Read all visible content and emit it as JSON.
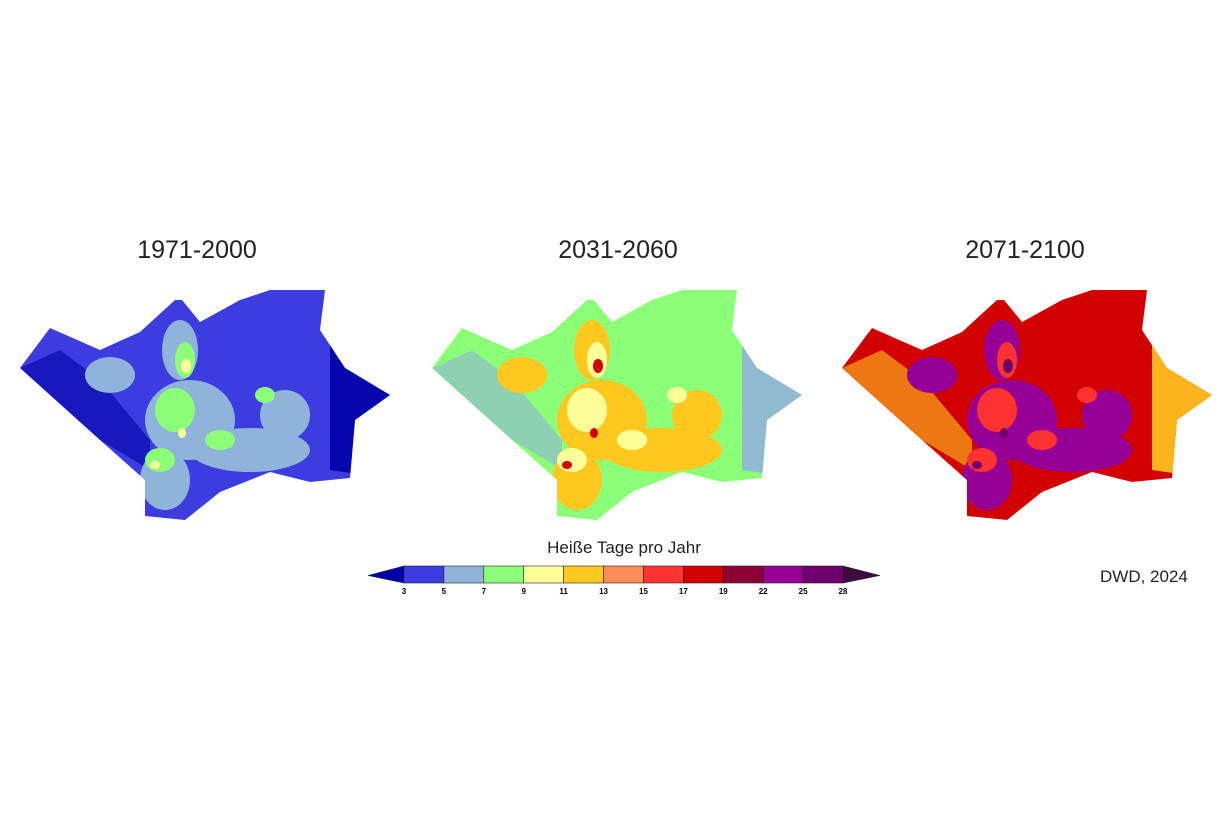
{
  "panels": [
    {
      "title": "1971-2000",
      "dominant": "#3c3ce0",
      "secondary": "#8fb3d9",
      "tertiary": "#8cff78",
      "hot": "#ffff99",
      "edge": "#0000a8"
    },
    {
      "title": "2031-2060",
      "dominant": "#8cff78",
      "secondary": "#ffc81e",
      "tertiary": "#ffff99",
      "hot": "#d20000",
      "edge": "#8fb3d9"
    },
    {
      "title": "2071-2100",
      "dominant": "#d20000",
      "secondary": "#960096",
      "tertiary": "#ff3232",
      "hot": "#6e006e",
      "edge": "#ffc81e"
    }
  ],
  "colorbar": {
    "title": "Heiße Tage pro Jahr",
    "ticks": [
      "3",
      "5",
      "7",
      "9",
      "11",
      "13",
      "15",
      "17",
      "19",
      "22",
      "25",
      "28"
    ],
    "under_color": "#0000a8",
    "over_color": "#3c0a3c",
    "colors": [
      "#3c3ce0",
      "#8fb3d9",
      "#8cff78",
      "#ffff99",
      "#ffc81e",
      "#ff8c55",
      "#ff3232",
      "#d20000",
      "#8c0032",
      "#960096",
      "#6e006e"
    ]
  },
  "credit": "DWD, 2024"
}
